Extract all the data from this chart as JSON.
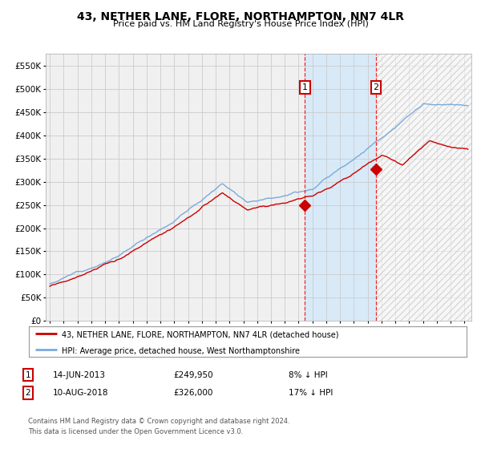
{
  "title": "43, NETHER LANE, FLORE, NORTHAMPTON, NN7 4LR",
  "subtitle": "Price paid vs. HM Land Registry's House Price Index (HPI)",
  "legend_property": "43, NETHER LANE, FLORE, NORTHAMPTON, NN7 4LR (detached house)",
  "legend_hpi": "HPI: Average price, detached house, West Northamptonshire",
  "footer": "Contains HM Land Registry data © Crown copyright and database right 2024.\nThis data is licensed under the Open Government Licence v3.0.",
  "point1_label": "14-JUN-2013",
  "point1_price": "£249,950",
  "point1_pct": "8% ↓ HPI",
  "point2_label": "10-AUG-2018",
  "point2_price": "£326,000",
  "point2_pct": "17% ↓ HPI",
  "point1_date_num": 2013.45,
  "point1_value": 249950,
  "point2_date_num": 2018.6,
  "point2_value": 326000,
  "hpi_color": "#7aaadd",
  "property_color": "#cc0000",
  "background_color": "#ffffff",
  "plot_bg_color": "#f0f0f0",
  "shade_color": "#d8eaf8",
  "grid_color": "#cccccc",
  "ylim": [
    0,
    575000
  ],
  "xlim_start": 1994.7,
  "xlim_end": 2025.5
}
